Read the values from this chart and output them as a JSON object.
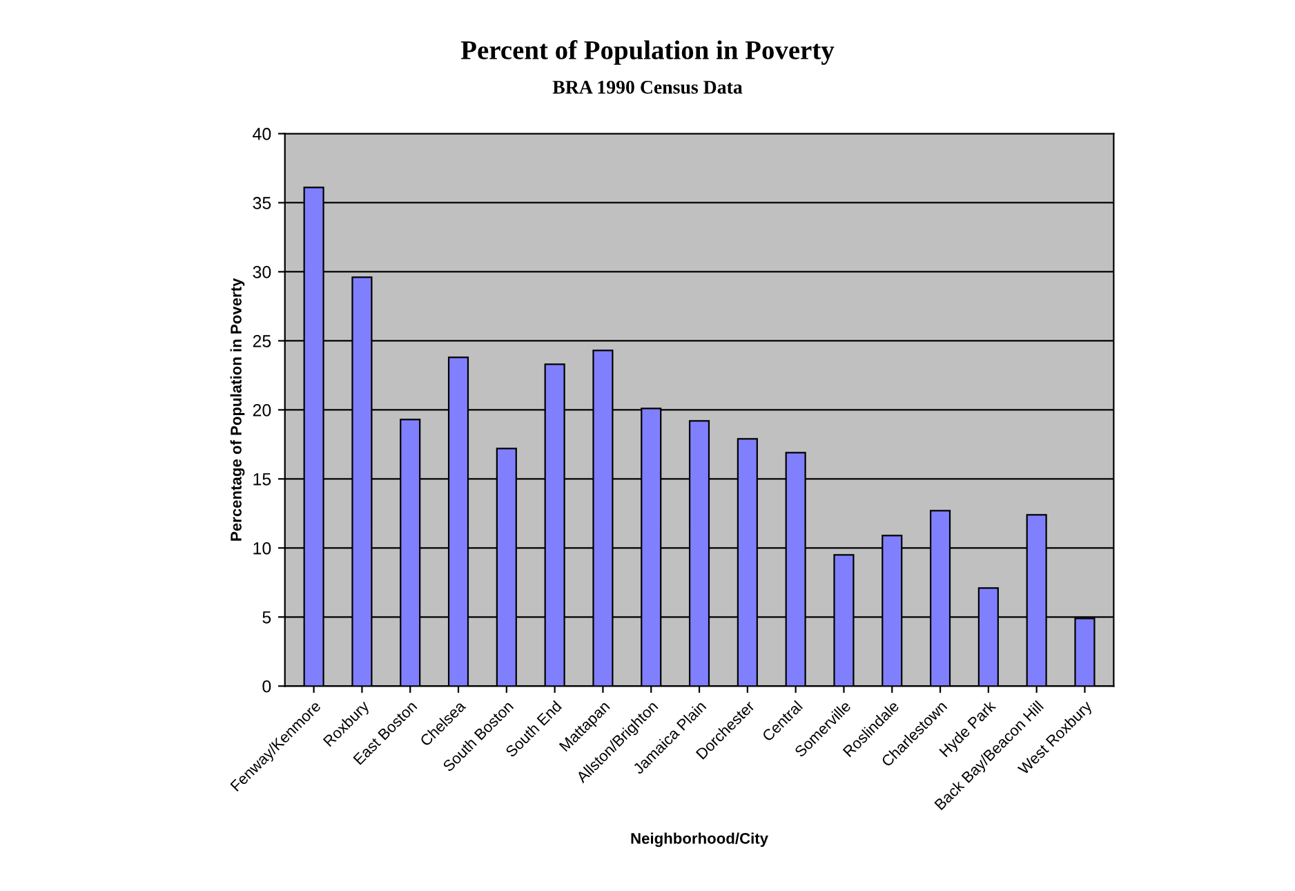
{
  "chart_data": {
    "type": "bar",
    "title": "Percent of Population in Poverty",
    "subtitle": "BRA 1990 Census Data",
    "xlabel": "Neighborhood/City",
    "ylabel": "Percentage of Population in Poverty",
    "categories": [
      "Fenway/Kenmore",
      "Roxbury",
      "East Boston",
      "Chelsea",
      "South Boston",
      "South End",
      "Mattapan",
      "Allston/Brighton",
      "Jamaica Plain",
      "Dorchester",
      "Central",
      "Somerville",
      "Roslindale",
      "Charlestown",
      "Hyde Park",
      "Back Bay/Beacon Hill",
      "West Roxbury"
    ],
    "values": [
      36.1,
      29.6,
      19.3,
      23.8,
      17.2,
      23.3,
      24.3,
      20.1,
      19.2,
      17.9,
      16.9,
      9.5,
      10.9,
      12.7,
      7.1,
      12.4,
      4.9
    ],
    "color": "#8080ff",
    "ylim": [
      0,
      40
    ],
    "yticks": [
      0,
      5,
      10,
      15,
      20,
      25,
      30,
      35,
      40
    ],
    "grid": "y",
    "legend": false
  }
}
